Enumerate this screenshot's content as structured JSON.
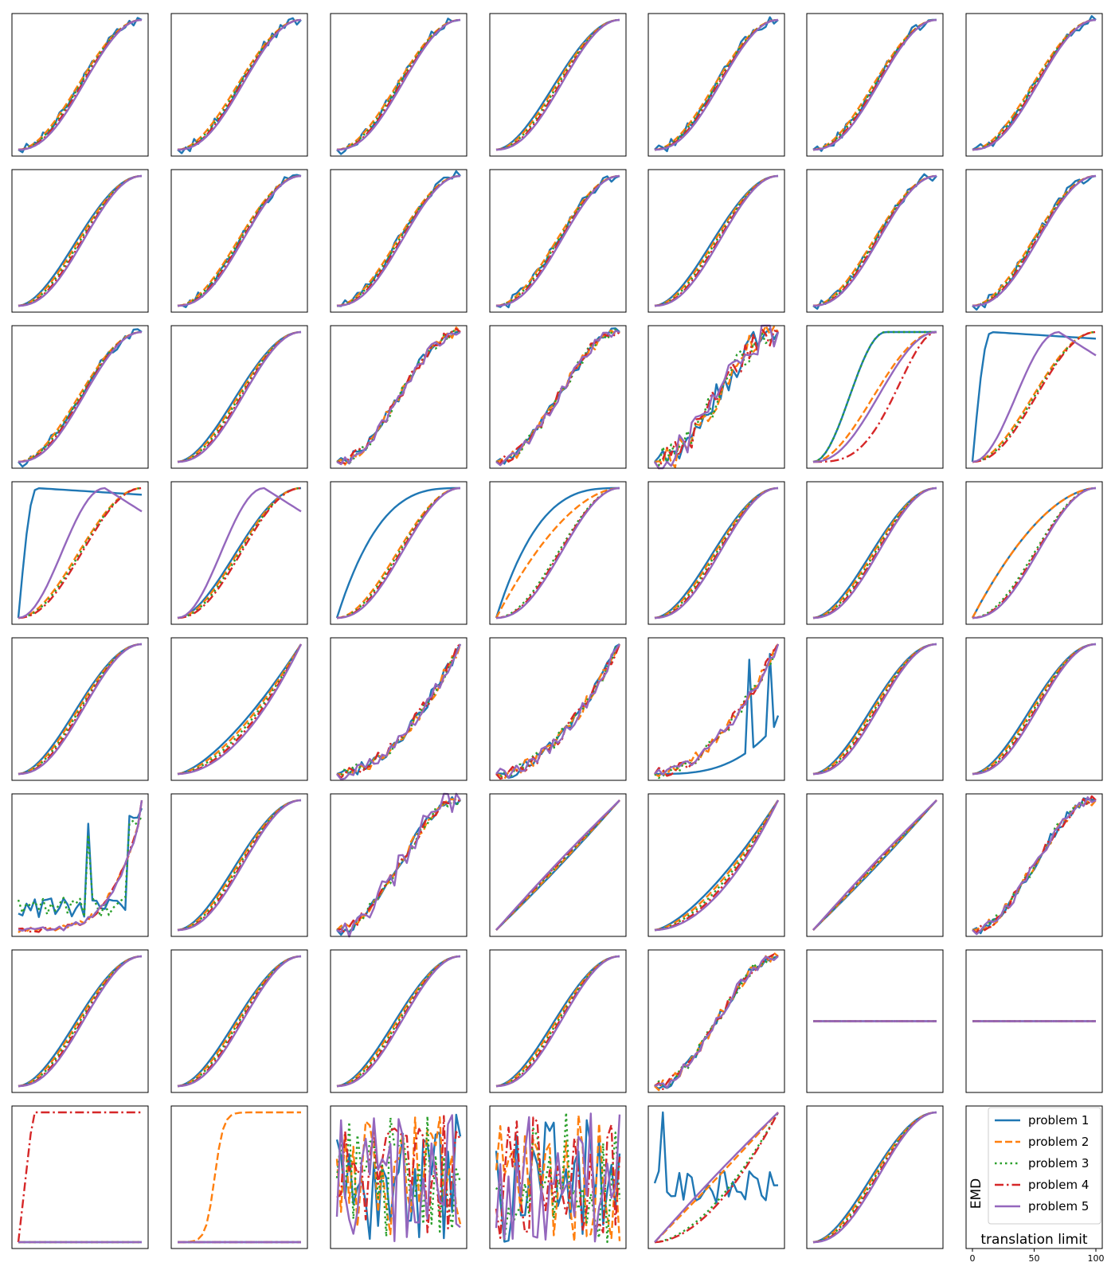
{
  "chart_data": {
    "type": "line",
    "grid_rows": 8,
    "grid_cols": 7,
    "xlabel": "translation limit",
    "ylabel": "EMD",
    "x_ticks": [
      0,
      50,
      100
    ],
    "xlim": [
      0,
      100
    ],
    "legend_position": "top-right of last panel",
    "series": [
      {
        "name": "problem 1",
        "color": "#1f77b4",
        "dash": "solid"
      },
      {
        "name": "problem 2",
        "color": "#ff7f0e",
        "dash": "dashed"
      },
      {
        "name": "problem 3",
        "color": "#2ca02c",
        "dash": "dotted"
      },
      {
        "name": "problem 4",
        "color": "#d62728",
        "dash": "dashdot"
      },
      {
        "name": "problem 5",
        "color": "#9467bd",
        "dash": "solid"
      }
    ],
    "panels": [
      {
        "shapes": [
          "sN",
          "s",
          "s",
          "s",
          "s"
        ]
      },
      {
        "shapes": [
          "sN",
          "s",
          "s",
          "s",
          "s"
        ]
      },
      {
        "shapes": [
          "sN",
          "s",
          "s",
          "s",
          "s"
        ]
      },
      {
        "shapes": [
          "s",
          "s",
          "s",
          "s",
          "s"
        ]
      },
      {
        "shapes": [
          "sN",
          "s",
          "s",
          "s",
          "s"
        ]
      },
      {
        "shapes": [
          "sN",
          "s",
          "s",
          "s",
          "s"
        ]
      },
      {
        "shapes": [
          "sN",
          "s",
          "s",
          "s",
          "s"
        ]
      },
      {
        "shapes": [
          "s",
          "s",
          "s",
          "s",
          "s"
        ]
      },
      {
        "shapes": [
          "sN",
          "s",
          "s",
          "s",
          "s"
        ]
      },
      {
        "shapes": [
          "sN",
          "s",
          "s",
          "s",
          "s"
        ]
      },
      {
        "shapes": [
          "sN",
          "s",
          "s",
          "s",
          "s"
        ]
      },
      {
        "shapes": [
          "s",
          "s",
          "s",
          "s",
          "s"
        ]
      },
      {
        "shapes": [
          "sN",
          "s",
          "s",
          "s",
          "s"
        ]
      },
      {
        "shapes": [
          "sN",
          "s",
          "s",
          "s",
          "s"
        ]
      },
      {
        "shapes": [
          "sN",
          "s",
          "s",
          "s",
          "s"
        ]
      },
      {
        "shapes": [
          "s",
          "s",
          "s",
          "s",
          "s"
        ]
      },
      {
        "shapes": [
          "sN",
          "sN",
          "sN",
          "sN",
          "sN"
        ]
      },
      {
        "shapes": [
          "sN",
          "sN",
          "sN",
          "sN",
          "sN"
        ]
      },
      {
        "shapes": [
          "vN",
          "vN",
          "vN",
          "vN",
          "vN"
        ]
      },
      {
        "shapes": [
          "fast",
          "s",
          "fast",
          "late",
          "s"
        ]
      },
      {
        "shapes": [
          "peak",
          "s",
          "s",
          "s",
          "hump"
        ]
      },
      {
        "shapes": [
          "peak",
          "s",
          "s",
          "s",
          "hump"
        ]
      },
      {
        "shapes": [
          "s",
          "s",
          "s",
          "s",
          "hump"
        ]
      },
      {
        "shapes": [
          "conc",
          "s",
          "s",
          "s",
          "s"
        ]
      },
      {
        "shapes": [
          "conc",
          "mid",
          "s",
          "s",
          "s"
        ]
      },
      {
        "shapes": [
          "s",
          "s",
          "s",
          "s",
          "s"
        ]
      },
      {
        "shapes": [
          "s",
          "s",
          "s",
          "s",
          "s"
        ]
      },
      {
        "shapes": [
          "mid",
          "mid",
          "s",
          "s",
          "s"
        ]
      },
      {
        "shapes": [
          "s",
          "s",
          "s",
          "s",
          "s"
        ]
      },
      {
        "shapes": [
          "conv",
          "conv",
          "conv",
          "conv",
          "conv"
        ]
      },
      {
        "shapes": [
          "convN",
          "convN",
          "convN",
          "convN",
          "convN"
        ]
      },
      {
        "shapes": [
          "convN",
          "convN",
          "convN",
          "convN",
          "convN"
        ]
      },
      {
        "shapes": [
          "spike",
          "convN",
          "convN",
          "convN",
          "convN"
        ]
      },
      {
        "shapes": [
          "s",
          "s",
          "s",
          "s",
          "s"
        ]
      },
      {
        "shapes": [
          "s",
          "s",
          "s",
          "s",
          "s"
        ]
      },
      {
        "shapes": [
          "noise",
          "rise",
          "noise",
          "rise",
          "rise"
        ]
      },
      {
        "shapes": [
          "s",
          "s",
          "s",
          "s",
          "s"
        ]
      },
      {
        "shapes": [
          "sN",
          "sN",
          "sN",
          "sN",
          "vN"
        ]
      },
      {
        "shapes": [
          "lin",
          "lin",
          "lin",
          "lin",
          "lin"
        ]
      },
      {
        "shapes": [
          "conv",
          "conv",
          "conv",
          "conv",
          "conv"
        ]
      },
      {
        "shapes": [
          "lin",
          "lin",
          "lin",
          "lin",
          "lin"
        ]
      },
      {
        "shapes": [
          "sN",
          "sN",
          "sN",
          "sN",
          "sN"
        ]
      },
      {
        "shapes": [
          "s",
          "s",
          "s",
          "s",
          "s"
        ]
      },
      {
        "shapes": [
          "s",
          "s",
          "s",
          "s",
          "s"
        ]
      },
      {
        "shapes": [
          "s",
          "s",
          "s",
          "s",
          "s"
        ]
      },
      {
        "shapes": [
          "s",
          "s",
          "s",
          "s",
          "s"
        ]
      },
      {
        "shapes": [
          "sN",
          "sN",
          "sN",
          "sN",
          "sN"
        ]
      },
      {
        "shapes": [
          "flat",
          "flat",
          "flat",
          "flat",
          "flat"
        ]
      },
      {
        "shapes": [
          "flat",
          "flat",
          "flat",
          "flat",
          "flat"
        ]
      },
      {
        "shapes": [
          "zero",
          "zero",
          "zero",
          "step",
          "zero"
        ]
      },
      {
        "shapes": [
          "zero",
          "sig",
          "zero",
          "zero",
          "zero"
        ]
      },
      {
        "shapes": [
          "random",
          "random",
          "random",
          "random",
          "random"
        ]
      },
      {
        "shapes": [
          "random",
          "random",
          "random",
          "random",
          "random"
        ]
      },
      {
        "shapes": [
          "odd",
          "lin",
          "conv",
          "conv",
          "lin"
        ]
      },
      {
        "shapes": [
          "s",
          "s",
          "s",
          "s",
          "s"
        ]
      },
      {
        "shapes": [
          "legend",
          "legend",
          "legend",
          "legend",
          "legend"
        ]
      }
    ]
  }
}
